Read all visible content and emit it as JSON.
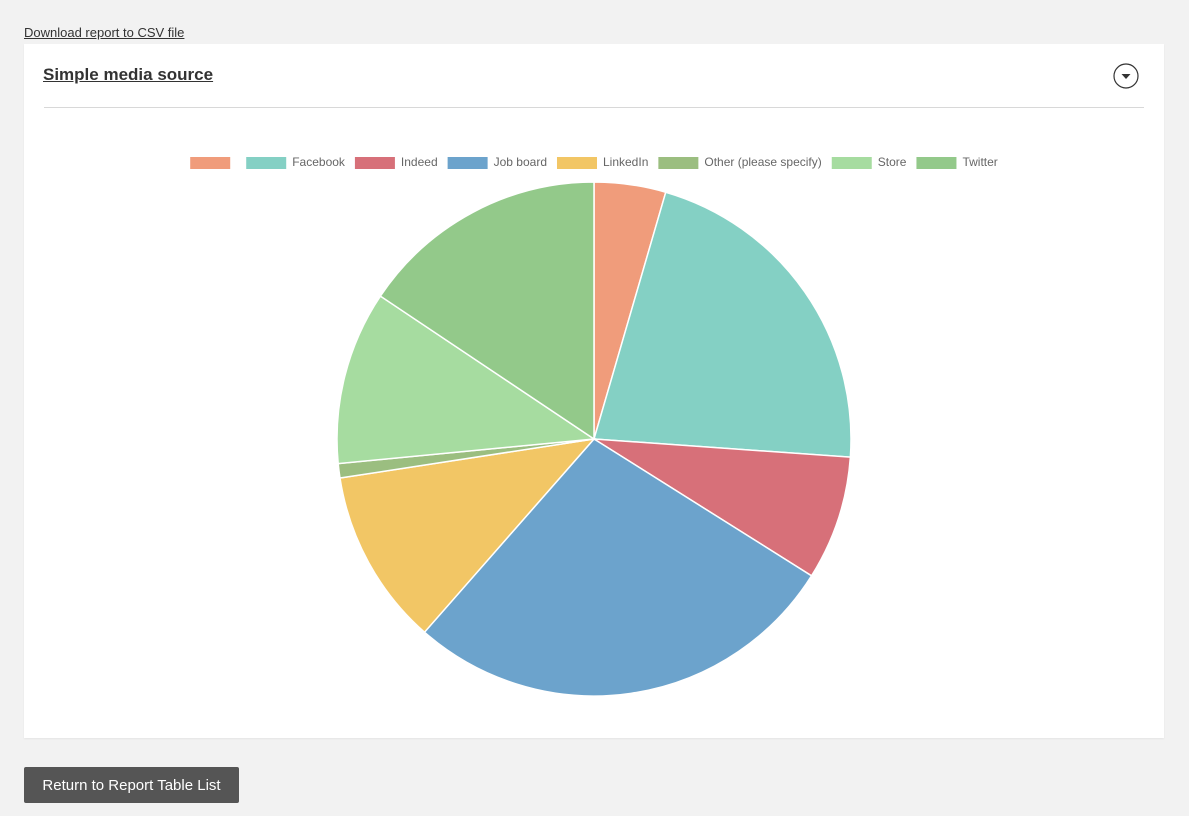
{
  "download_link": "Download report to CSV file",
  "panel": {
    "title": "Simple media source"
  },
  "chart_data": {
    "type": "pie",
    "categories": [
      null,
      "Facebook",
      "Indeed",
      "Job board",
      "LinkedIn",
      "Other (please specify)",
      "Store",
      "Twitter"
    ],
    "values": [
      4.5,
      21.6,
      7.8,
      27.5,
      11.1,
      0.9,
      10.9,
      15.6
    ],
    "colors": [
      "#f09c7b",
      "#84d0c4",
      "#d77079",
      "#6ca3cc",
      "#f2c665",
      "#9bbe80",
      "#a6dca0",
      "#93c98a"
    ],
    "legend": "top"
  },
  "return_button": "Return to Report Table List"
}
